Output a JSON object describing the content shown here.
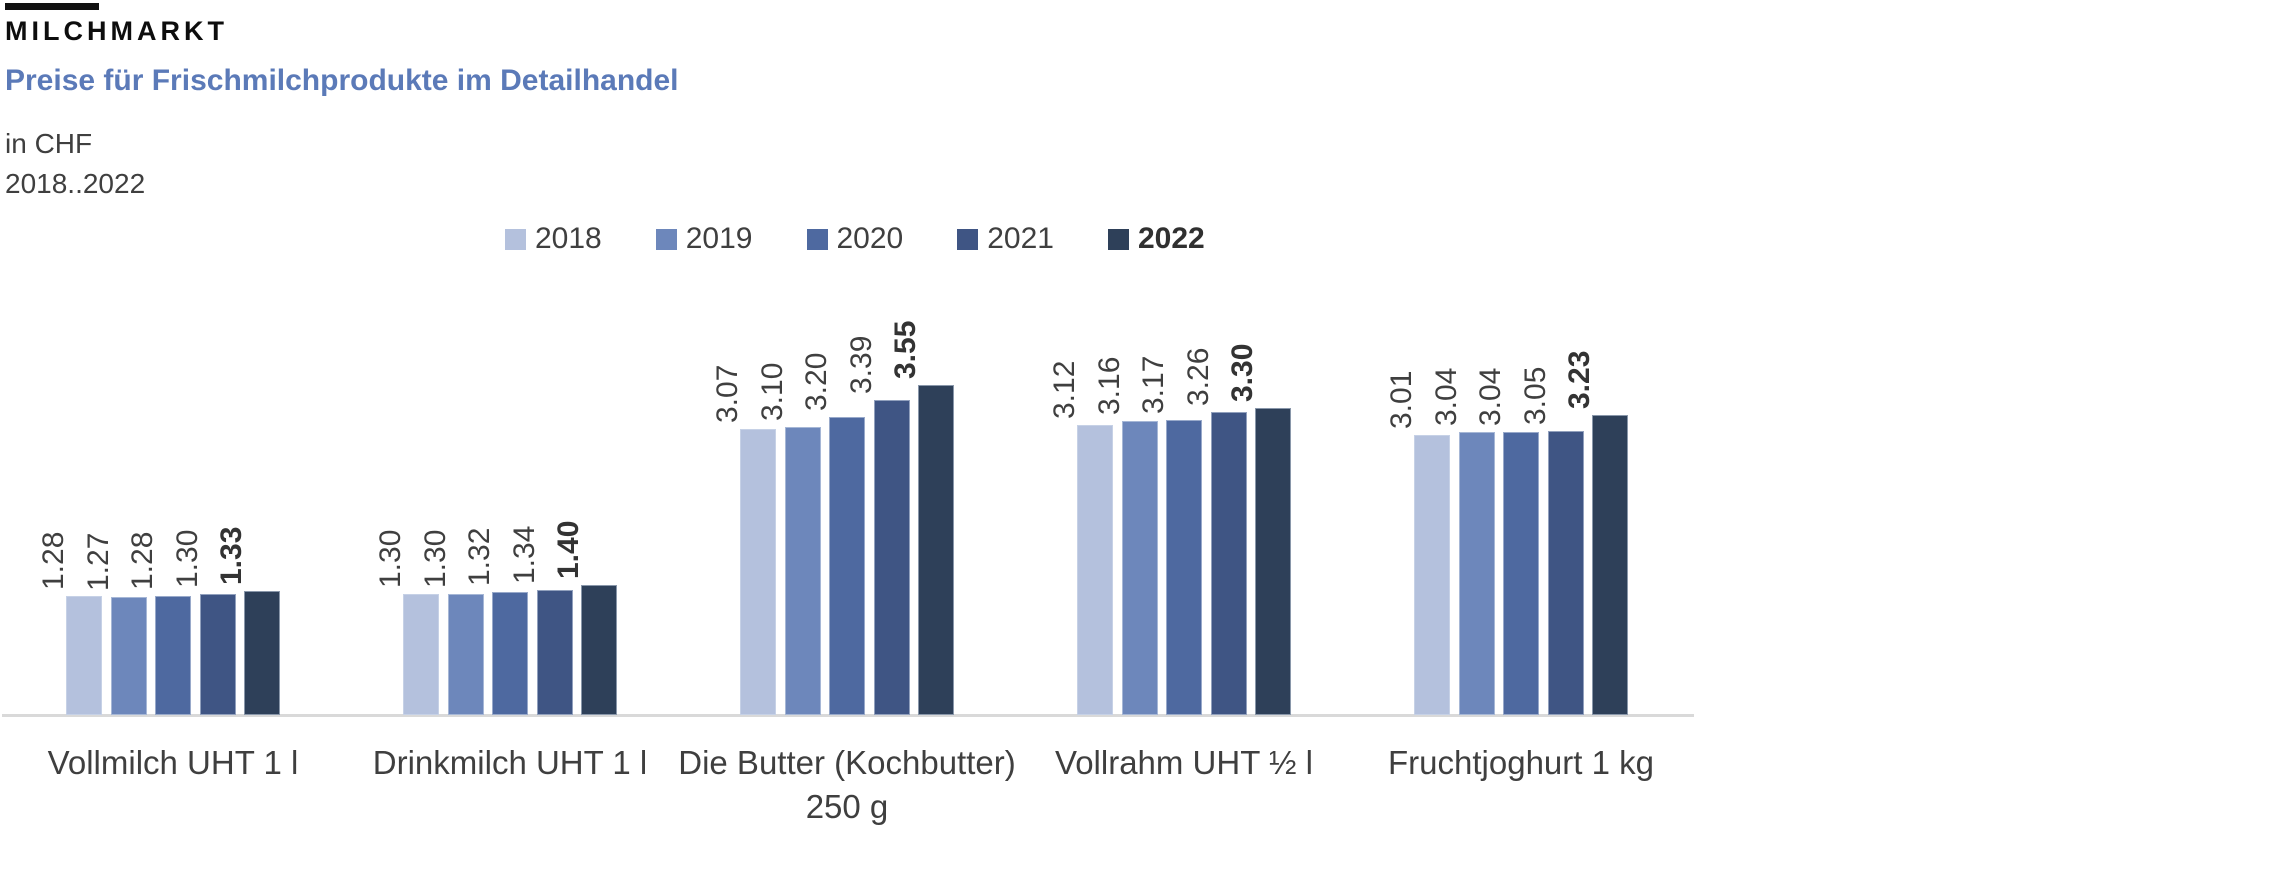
{
  "header": {
    "title": "MILCHMARKT",
    "subtitle": "Preise für Frischmilchprodukte im Detailhandel",
    "unit": "in CHF",
    "period": "2018..2022"
  },
  "colors": {
    "top_rule": "#111111",
    "subtitle": "#5b7ab8",
    "text": "#3f3f3f",
    "axis_line": "#d9d9d9",
    "series": [
      "#b4c1dd",
      "#6d87bb",
      "#4e69a0",
      "#3f5584",
      "#2e4059"
    ]
  },
  "chart_data": {
    "type": "bar",
    "title": "Preise für Frischmilchprodukte im Detailhandel",
    "subtitle_unit": "in CHF",
    "period": "2018..2022",
    "categories": [
      "Vollmilch UHT 1 l",
      "Drinkmilch UHT 1 l",
      "Die Butter (Kochbutter)\n250 g",
      "Vollrahm UHT ½ l",
      "Fruchtjoghurt 1 kg"
    ],
    "series": [
      {
        "name": "2018",
        "values": [
          1.28,
          1.3,
          3.07,
          3.12,
          3.01
        ],
        "emphasis": false
      },
      {
        "name": "2019",
        "values": [
          1.27,
          1.3,
          3.1,
          3.16,
          3.04
        ],
        "emphasis": false
      },
      {
        "name": "2020",
        "values": [
          1.28,
          1.32,
          3.2,
          3.17,
          3.04
        ],
        "emphasis": false
      },
      {
        "name": "2021",
        "values": [
          1.3,
          1.34,
          3.39,
          3.26,
          3.05
        ],
        "emphasis": false
      },
      {
        "name": "2022",
        "values": [
          1.33,
          1.4,
          3.55,
          3.3,
          3.23
        ],
        "emphasis": true
      }
    ],
    "value_labels": true,
    "value_label_decimals": 2,
    "value_label_rotation_deg": 90,
    "legend_position": "top",
    "ylim": [
      0,
      3.8
    ],
    "grid": false,
    "y_axis_visible": false
  }
}
